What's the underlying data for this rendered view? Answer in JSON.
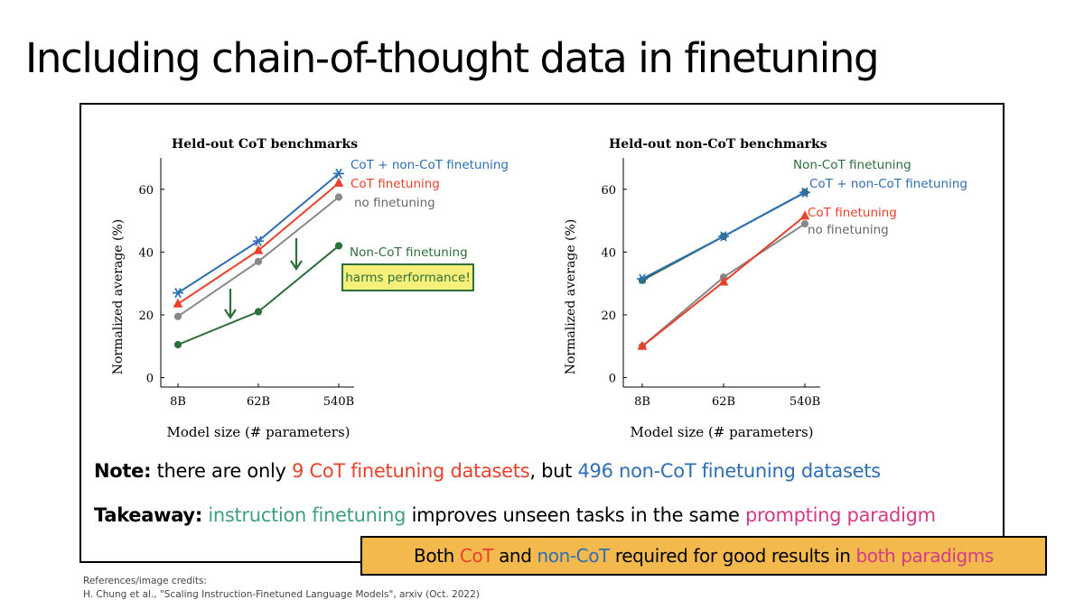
{
  "title": "Including chain-of-thought data in finetuning",
  "colors": {
    "blue": "#2e6eb5",
    "red": "#e8412c",
    "gray": "#888888",
    "green": "#2d6e3c",
    "teal": "#3da07a",
    "magenta": "#d43a87",
    "callout_bg": "#f3b94d",
    "badge_bg": "#f5f07a"
  },
  "chart_data": [
    {
      "type": "line",
      "title": "Held-out CoT benchmarks",
      "xlabel": "Model size (# parameters)",
      "ylabel": "Normalized average (%)",
      "categories": [
        "8B",
        "62B",
        "540B"
      ],
      "yticks": [
        0,
        20,
        40,
        60
      ],
      "ylim": [
        -3,
        70
      ],
      "series": [
        {
          "name": "no finetuning",
          "label": "no finetuning",
          "values": [
            19.5,
            37,
            57.5
          ],
          "color": "#888888",
          "marker": "circle"
        },
        {
          "name": "CoT finetuning",
          "label": "CoT finetuning",
          "values": [
            23.5,
            40.5,
            62
          ],
          "color": "#e8412c",
          "marker": "triangle"
        },
        {
          "name": "CoT + non-CoT finetuning",
          "label": "CoT + non-CoT finetuning",
          "values": [
            27,
            43.5,
            65
          ],
          "color": "#2e6eb5",
          "marker": "star"
        },
        {
          "name": "Non-CoT finetuning",
          "label": "Non-CoT finetuning",
          "values": [
            10.5,
            21,
            42
          ],
          "color": "#2d6e3c",
          "marker": "circle"
        }
      ],
      "annotation": "harms performance!"
    },
    {
      "type": "line",
      "title": "Held-out non-CoT benchmarks",
      "xlabel": "Model size (# parameters)",
      "ylabel": "Normalized average (%)",
      "categories": [
        "8B",
        "62B",
        "540B"
      ],
      "yticks": [
        0,
        20,
        40,
        60
      ],
      "ylim": [
        -3,
        70
      ],
      "series": [
        {
          "name": "no finetuning",
          "label": "no finetuning",
          "values": [
            10,
            32,
            49
          ],
          "color": "#888888",
          "marker": "circle"
        },
        {
          "name": "CoT finetuning",
          "label": "CoT finetuning",
          "values": [
            10,
            30.5,
            51.5
          ],
          "color": "#e8412c",
          "marker": "triangle"
        },
        {
          "name": "Non-CoT finetuning",
          "label": "Non-CoT finetuning",
          "values": [
            31,
            45,
            59
          ],
          "color": "#2d6e3c",
          "marker": "circle"
        },
        {
          "name": "CoT + non-CoT finetuning",
          "label": "CoT + non-CoT finetuning",
          "values": [
            31.5,
            45,
            59
          ],
          "color": "#2e6eb5",
          "marker": "star"
        }
      ]
    }
  ],
  "note": {
    "label": "Note:",
    "part1": " there are only ",
    "red_text": "9 CoT finetuning datasets",
    "part2": ", but ",
    "blue_text": "496 non-CoT finetuning datasets"
  },
  "takeaway": {
    "label": "Takeaway:",
    "teal_text": "instruction finetuning",
    "part1": " improves unseen tasks in the same ",
    "magenta_text": "prompting paradigm"
  },
  "callout": {
    "part1": "Both ",
    "red_text": "CoT",
    "part2": " and ",
    "blue_text": "non-CoT",
    "part3": " required for good results in ",
    "magenta_text": "both paradigms"
  },
  "references": {
    "heading": "References/image credits:",
    "citation": "H. Chung et al., \"Scaling Instruction-Finetuned Language Models\", arxiv (Oct. 2022)"
  }
}
